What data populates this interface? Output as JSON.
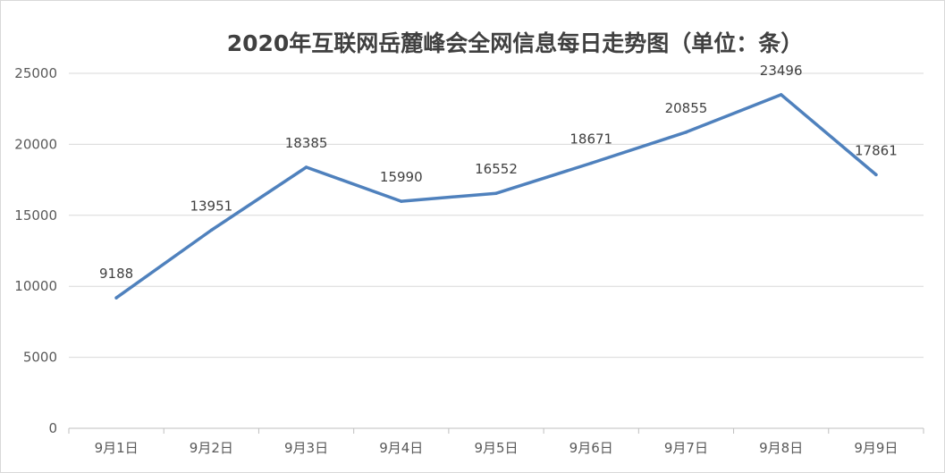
{
  "chart_data": {
    "type": "line",
    "title": "2020年互联网岳麓峰会全网信息每日走势图（单位：条）",
    "xlabel": "",
    "ylabel": "",
    "categories": [
      "9月1日",
      "9月2日",
      "9月3日",
      "9月4日",
      "9月5日",
      "9月6日",
      "9月7日",
      "9月8日",
      "9月9日"
    ],
    "series": [
      {
        "values": [
          9188,
          13951,
          18385,
          15990,
          16552,
          18671,
          20855,
          23496,
          17861
        ],
        "color": "#4f81bd"
      }
    ],
    "ylim": [
      0,
      25000
    ],
    "yticks": [
      0,
      5000,
      10000,
      15000,
      20000,
      25000
    ],
    "grid": true,
    "legend": "none",
    "data_labels": true,
    "colors": {
      "gridline": "#d9d9d9",
      "axis": "#bfbfbf",
      "tick_text": "#595959",
      "title_text": "#404040"
    }
  }
}
